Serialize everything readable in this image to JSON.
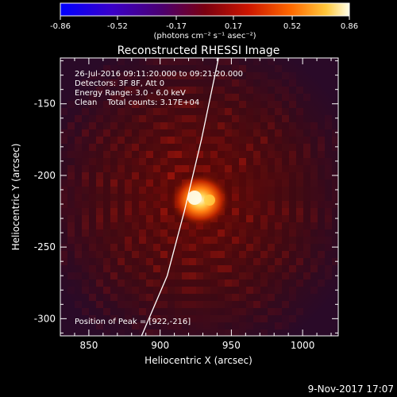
{
  "chart_data": {
    "type": "heatmap",
    "title": "Reconstructed RHESSI Image",
    "xlabel": "Heliocentric X (arcsec)",
    "ylabel": "Heliocentric Y (arcsec)",
    "xlim": [
      830,
      1025
    ],
    "ylim": [
      -312,
      -118
    ],
    "x_ticks": [
      850,
      900,
      950,
      1000
    ],
    "y_ticks": [
      -150,
      -200,
      -250,
      -300
    ],
    "peak": [
      922,
      -216
    ],
    "annotations": [
      "26-Jul-2016 09:11:20.000 to 09:21:20.000",
      "Detectors: 3F 8F, Att 0",
      "Energy Range: 3.0 - 6.0 keV",
      "Clean    Total counts: 3.17E+04",
      "Position of Peak = [922,-216]"
    ],
    "colorbar": {
      "min": -0.86,
      "max": 0.86,
      "ticks": [
        "-0.86",
        "-0.52",
        "-0.17",
        "0.17",
        "0.52",
        "0.86"
      ],
      "unit_label": "(photons cm⁻² s⁻¹ asec⁻²)"
    },
    "limb_arc": {
      "description_points": [
        [
          887,
          -312
        ],
        [
          905,
          -270
        ],
        [
          917,
          -225
        ],
        [
          929,
          -175
        ],
        [
          941,
          -118
        ]
      ]
    }
  },
  "footer_date": "9-Nov-2017 17:07"
}
